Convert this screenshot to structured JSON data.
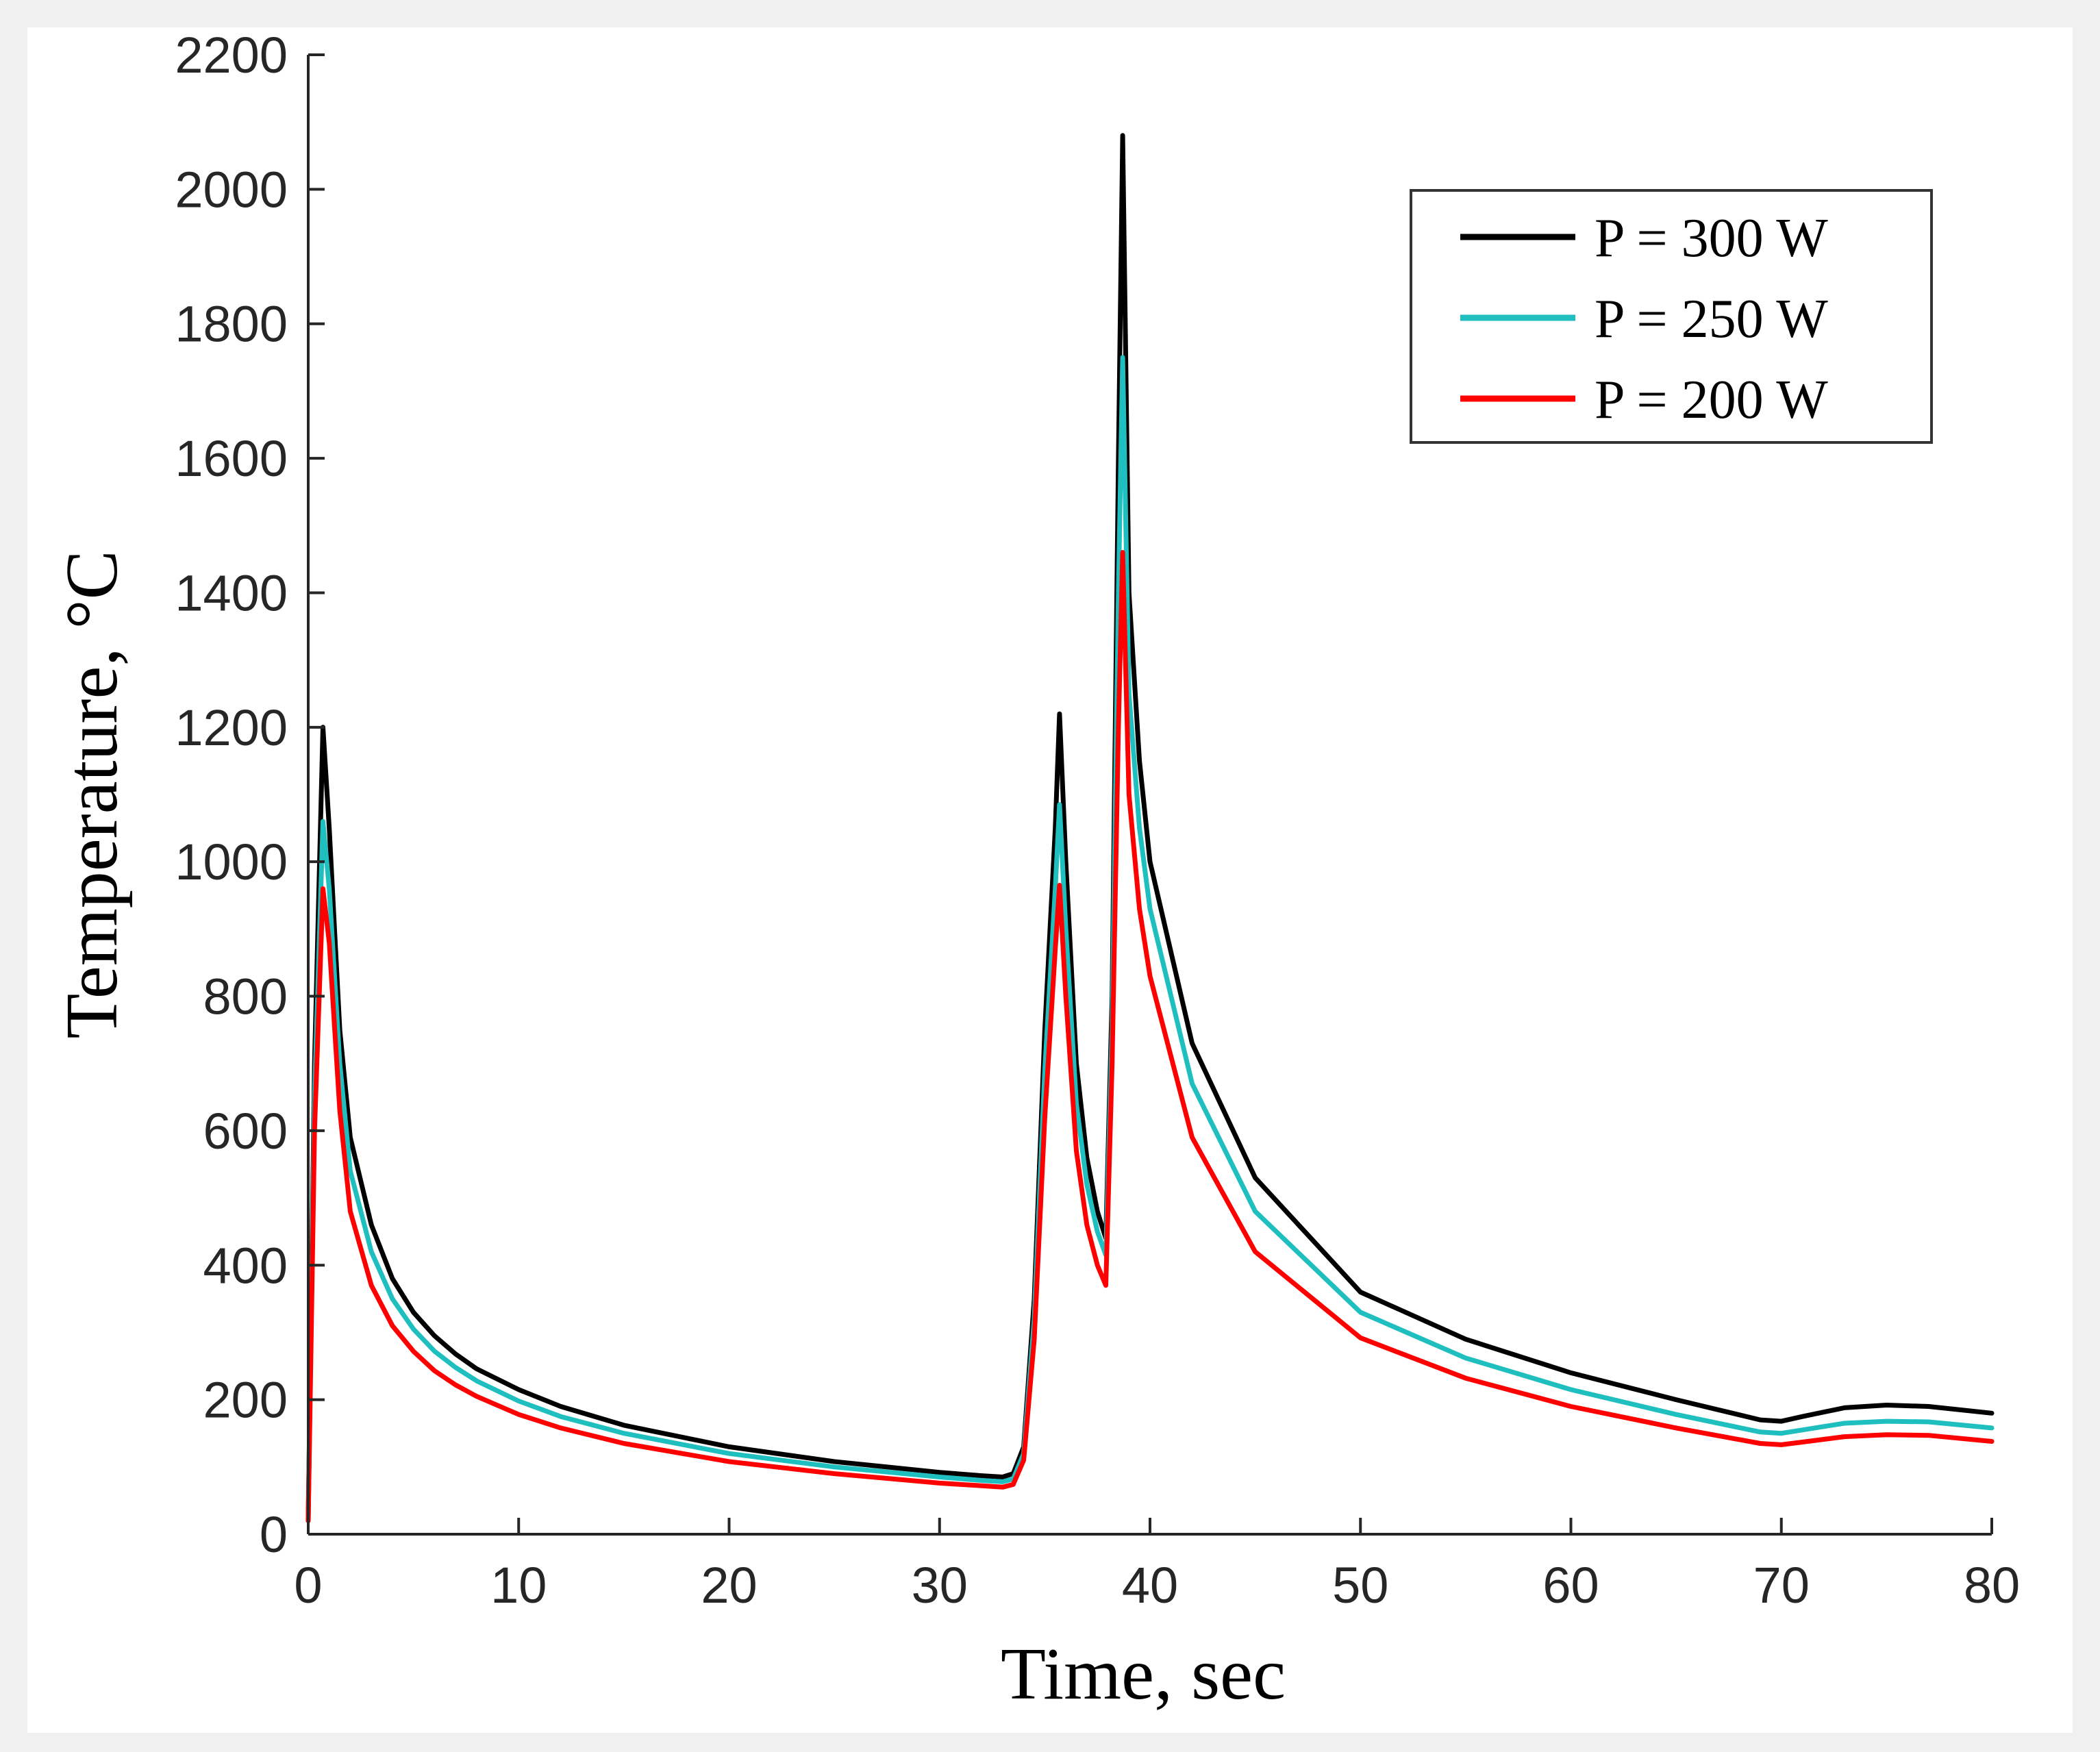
{
  "chart_data": {
    "type": "line",
    "title": "",
    "xlabel": "Time, sec",
    "ylabel": "Temperature, °C",
    "xlim": [
      0,
      80
    ],
    "ylim": [
      0,
      2200
    ],
    "xticks": [
      0,
      10,
      20,
      30,
      40,
      50,
      60,
      70,
      80
    ],
    "xtick_labels": [
      "0",
      "10",
      "20",
      "30",
      "40",
      "50",
      "60",
      "70",
      "80"
    ],
    "yticks": [
      0,
      200,
      400,
      600,
      800,
      1000,
      1200,
      1400,
      1600,
      1800,
      2000,
      2200
    ],
    "ytick_labels": [
      "0",
      "200",
      "400",
      "600",
      "800",
      "1000",
      "1200",
      "1400",
      "1600",
      "1800",
      "2000",
      "2200"
    ],
    "grid": false,
    "legend_position": "top-right",
    "series": [
      {
        "name": "P = 300 W",
        "color": "#000000",
        "points": [
          [
            0,
            20
          ],
          [
            0.3,
            700
          ],
          [
            0.7,
            1200
          ],
          [
            1,
            1050
          ],
          [
            1.5,
            750
          ],
          [
            2,
            590
          ],
          [
            3,
            460
          ],
          [
            4,
            380
          ],
          [
            5,
            330
          ],
          [
            6,
            295
          ],
          [
            7,
            268
          ],
          [
            8,
            246
          ],
          [
            10,
            215
          ],
          [
            12,
            190
          ],
          [
            15,
            162
          ],
          [
            20,
            130
          ],
          [
            25,
            108
          ],
          [
            30,
            92
          ],
          [
            32,
            87
          ],
          [
            33,
            85
          ],
          [
            33.5,
            90
          ],
          [
            34,
            130
          ],
          [
            34.5,
            350
          ],
          [
            35,
            750
          ],
          [
            35.5,
            1050
          ],
          [
            35.7,
            1220
          ],
          [
            36,
            1000
          ],
          [
            36.5,
            700
          ],
          [
            37,
            560
          ],
          [
            37.5,
            480
          ],
          [
            37.9,
            440
          ],
          [
            38.2,
            800
          ],
          [
            38.5,
            1600
          ],
          [
            38.7,
            2080
          ],
          [
            39,
            1400
          ],
          [
            39.5,
            1150
          ],
          [
            40,
            1000
          ],
          [
            42,
            730
          ],
          [
            45,
            530
          ],
          [
            50,
            360
          ],
          [
            55,
            290
          ],
          [
            60,
            240
          ],
          [
            65,
            200
          ],
          [
            69,
            170
          ],
          [
            70,
            168
          ],
          [
            71,
            175
          ],
          [
            73,
            188
          ],
          [
            75,
            192
          ],
          [
            77,
            190
          ],
          [
            80,
            180
          ]
        ]
      },
      {
        "name": "P = 250 W",
        "color": "#1fbfbf",
        "points": [
          [
            0,
            20
          ],
          [
            0.3,
            650
          ],
          [
            0.7,
            1060
          ],
          [
            1,
            960
          ],
          [
            1.5,
            700
          ],
          [
            2,
            540
          ],
          [
            3,
            420
          ],
          [
            4,
            350
          ],
          [
            5,
            305
          ],
          [
            6,
            272
          ],
          [
            7,
            248
          ],
          [
            8,
            228
          ],
          [
            10,
            198
          ],
          [
            12,
            175
          ],
          [
            15,
            150
          ],
          [
            20,
            120
          ],
          [
            25,
            100
          ],
          [
            30,
            85
          ],
          [
            32,
            80
          ],
          [
            33,
            78
          ],
          [
            33.5,
            82
          ],
          [
            34,
            120
          ],
          [
            34.5,
            320
          ],
          [
            35,
            690
          ],
          [
            35.5,
            960
          ],
          [
            35.7,
            1085
          ],
          [
            36,
            900
          ],
          [
            36.5,
            640
          ],
          [
            37,
            520
          ],
          [
            37.5,
            450
          ],
          [
            37.9,
            415
          ],
          [
            38.2,
            750
          ],
          [
            38.5,
            1400
          ],
          [
            38.7,
            1750
          ],
          [
            39,
            1250
          ],
          [
            39.5,
            1050
          ],
          [
            40,
            930
          ],
          [
            42,
            670
          ],
          [
            45,
            480
          ],
          [
            50,
            330
          ],
          [
            55,
            262
          ],
          [
            60,
            215
          ],
          [
            65,
            178
          ],
          [
            69,
            152
          ],
          [
            70,
            150
          ],
          [
            71,
            155
          ],
          [
            73,
            165
          ],
          [
            75,
            168
          ],
          [
            77,
            167
          ],
          [
            80,
            158
          ]
        ]
      },
      {
        "name": "P = 200 W",
        "color": "#ff0000",
        "points": [
          [
            0,
            20
          ],
          [
            0.3,
            600
          ],
          [
            0.7,
            960
          ],
          [
            1,
            880
          ],
          [
            1.5,
            630
          ],
          [
            2,
            480
          ],
          [
            3,
            370
          ],
          [
            4,
            310
          ],
          [
            5,
            272
          ],
          [
            6,
            243
          ],
          [
            7,
            222
          ],
          [
            8,
            205
          ],
          [
            10,
            178
          ],
          [
            12,
            158
          ],
          [
            15,
            135
          ],
          [
            20,
            108
          ],
          [
            25,
            90
          ],
          [
            30,
            76
          ],
          [
            32,
            72
          ],
          [
            33,
            70
          ],
          [
            33.5,
            74
          ],
          [
            34,
            110
          ],
          [
            34.5,
            290
          ],
          [
            35,
            620
          ],
          [
            35.5,
            870
          ],
          [
            35.7,
            965
          ],
          [
            36,
            800
          ],
          [
            36.5,
            570
          ],
          [
            37,
            460
          ],
          [
            37.5,
            400
          ],
          [
            37.9,
            370
          ],
          [
            38.2,
            700
          ],
          [
            38.5,
            1200
          ],
          [
            38.7,
            1460
          ],
          [
            39,
            1100
          ],
          [
            39.5,
            930
          ],
          [
            40,
            830
          ],
          [
            42,
            590
          ],
          [
            45,
            420
          ],
          [
            50,
            292
          ],
          [
            55,
            232
          ],
          [
            60,
            190
          ],
          [
            65,
            158
          ],
          [
            69,
            135
          ],
          [
            70,
            133
          ],
          [
            71,
            137
          ],
          [
            73,
            145
          ],
          [
            75,
            148
          ],
          [
            77,
            147
          ],
          [
            80,
            138
          ]
        ]
      }
    ]
  }
}
